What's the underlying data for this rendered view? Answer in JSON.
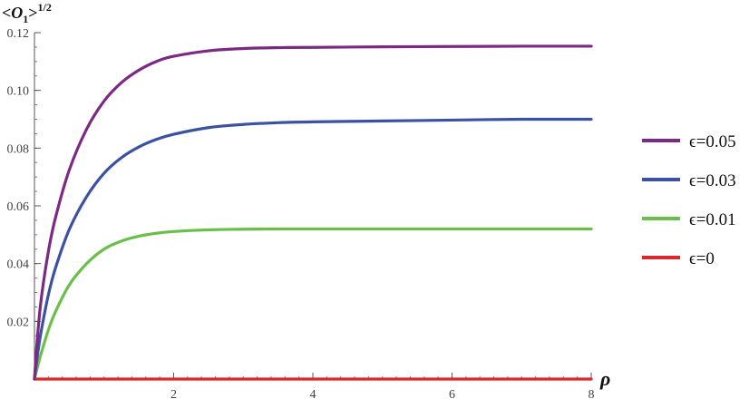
{
  "chart_data": {
    "type": "line",
    "title": "",
    "ylabel": {
      "prefix": "<",
      "symbol": "O",
      "subscript": "1",
      "suffix": ">",
      "exponent": "1/2"
    },
    "xlabel": "ρ",
    "xlim": [
      0,
      8
    ],
    "ylim": [
      0,
      0.12
    ],
    "xticks": [
      {
        "value": 2,
        "label": "2"
      },
      {
        "value": 4,
        "label": "4"
      },
      {
        "value": 6,
        "label": "6"
      },
      {
        "value": 8,
        "label": "8"
      }
    ],
    "yticks": [
      {
        "value": 0.02,
        "label": "0.02"
      },
      {
        "value": 0.04,
        "label": "0.04"
      },
      {
        "value": 0.06,
        "label": "0.06"
      },
      {
        "value": 0.08,
        "label": "0.08"
      },
      {
        "value": 0.1,
        "label": "0.10"
      },
      {
        "value": 0.12,
        "label": "0.12"
      }
    ],
    "grid": false,
    "legend_position": "right",
    "series": [
      {
        "name": "ϵ=0.05",
        "color": "#7b2a84",
        "x": [
          0,
          0.05,
          0.1,
          0.2,
          0.3,
          0.5,
          0.75,
          1.0,
          1.25,
          1.5,
          1.75,
          2.0,
          2.5,
          3.0,
          3.5,
          4.0,
          5.0,
          6.0,
          7.0,
          8.0
        ],
        "y": [
          0,
          0.0165,
          0.0283,
          0.0442,
          0.0557,
          0.0724,
          0.0866,
          0.0963,
          0.1027,
          0.107,
          0.11,
          0.1118,
          0.1137,
          0.1145,
          0.1148,
          0.1149,
          0.1151,
          0.1152,
          0.1153,
          0.1153
        ]
      },
      {
        "name": "ϵ=0.03",
        "color": "#3b52a2",
        "x": [
          0,
          0.05,
          0.1,
          0.2,
          0.3,
          0.5,
          0.75,
          1.0,
          1.25,
          1.5,
          1.75,
          2.0,
          2.5,
          3.0,
          3.5,
          4.0,
          5.0,
          6.0,
          7.0,
          8.0
        ],
        "y": [
          0,
          0.0094,
          0.017,
          0.0292,
          0.0383,
          0.0518,
          0.0632,
          0.0713,
          0.0767,
          0.0804,
          0.083,
          0.0848,
          0.0871,
          0.0882,
          0.0888,
          0.0891,
          0.0894,
          0.0897,
          0.09,
          0.09
        ]
      },
      {
        "name": "ϵ=0.01",
        "color": "#6abf4b",
        "x": [
          0,
          0.05,
          0.1,
          0.2,
          0.3,
          0.5,
          0.75,
          1.0,
          1.25,
          1.5,
          1.75,
          2.0,
          2.5,
          3.0,
          3.5,
          4.0,
          5.0,
          6.0,
          7.0,
          8.0
        ],
        "y": [
          0,
          0.0048,
          0.0092,
          0.017,
          0.0232,
          0.0326,
          0.04,
          0.045,
          0.0478,
          0.0495,
          0.0505,
          0.0511,
          0.0517,
          0.0519,
          0.052,
          0.052,
          0.052,
          0.052,
          0.052,
          0.052
        ]
      },
      {
        "name": "ϵ=0",
        "color": "#d9292c",
        "x": [
          0,
          1,
          2,
          3,
          4,
          5,
          6,
          7,
          8
        ],
        "y": [
          0,
          0,
          0,
          0,
          0,
          0,
          0,
          0,
          0
        ]
      }
    ]
  }
}
